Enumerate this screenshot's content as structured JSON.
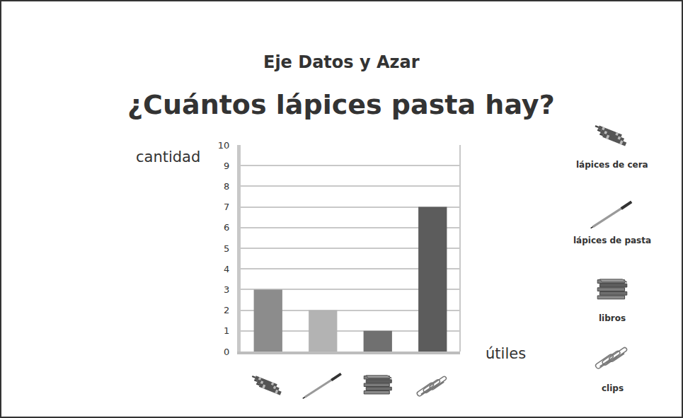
{
  "chart_data": {
    "type": "bar",
    "title": "¿Cuántos lápices pasta hay?",
    "subtitle": "Eje Datos y Azar",
    "x_label": "útiles",
    "y_label": "cantidad",
    "categories": [
      "lápices de cera",
      "lápices de pasta",
      "libros",
      "clips"
    ],
    "values": [
      3,
      2,
      1,
      7
    ],
    "colors": [
      "#8c8c8c",
      "#b3b3b3",
      "#707070",
      "#5c5c5c"
    ],
    "ylim": [
      0,
      10
    ],
    "yticks": [
      0,
      1,
      2,
      3,
      4,
      5,
      6,
      7,
      8,
      9,
      10
    ],
    "grid": true,
    "tick_labels": "y"
  }
}
